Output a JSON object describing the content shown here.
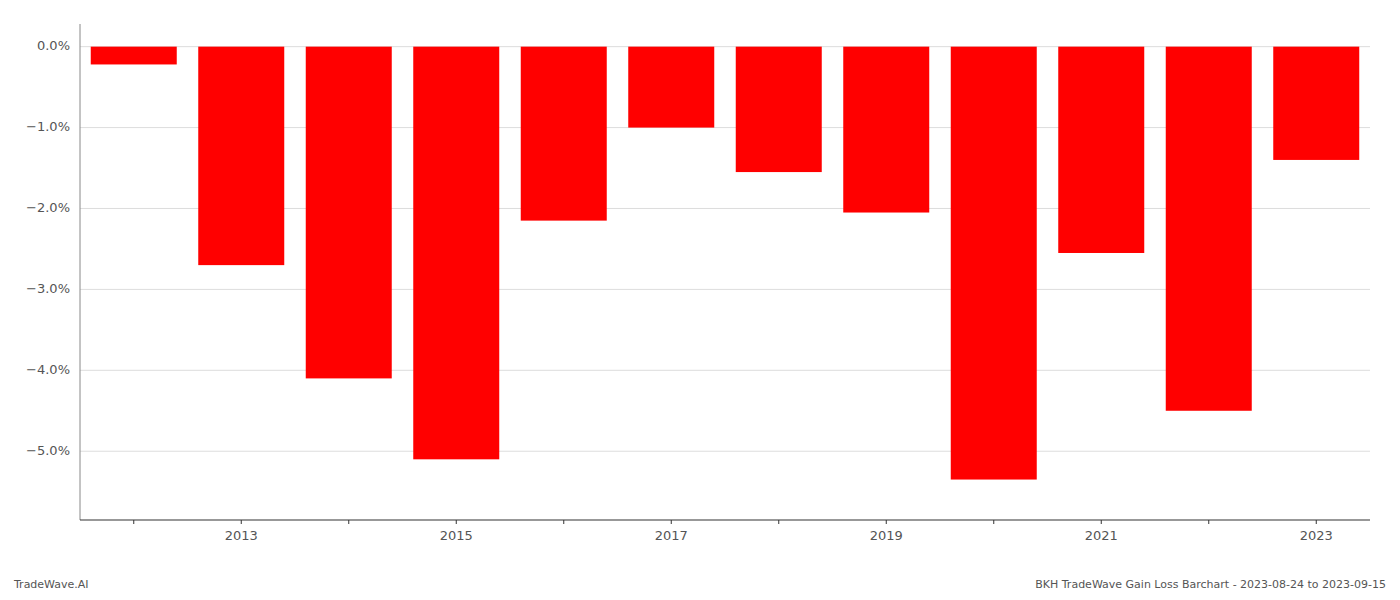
{
  "chart_data": {
    "type": "bar",
    "categories": [
      null,
      "2013",
      null,
      "2015",
      null,
      "2017",
      null,
      "2019",
      null,
      "2021",
      null,
      "2023"
    ],
    "values": [
      -0.22,
      -2.7,
      -4.1,
      -5.1,
      -2.15,
      -1.0,
      -1.55,
      -2.05,
      -5.35,
      -2.55,
      -4.5,
      -1.4
    ],
    "color": "#ff0000",
    "ylim": [
      -5.85,
      0.28
    ],
    "yticks": [
      {
        "value": 0.0,
        "label": "0.0%"
      },
      {
        "value": -1.0,
        "label": "−1.0%"
      },
      {
        "value": -2.0,
        "label": "−2.0%"
      },
      {
        "value": -3.0,
        "label": "−3.0%"
      },
      {
        "value": -4.0,
        "label": "−4.0%"
      },
      {
        "value": -5.0,
        "label": "−5.0%"
      }
    ],
    "grid": true,
    "annotations": [
      "TradeWave.AI",
      "BKH TradeWave Gain Loss Barchart - 2023-08-24 to 2023-09-15"
    ]
  }
}
